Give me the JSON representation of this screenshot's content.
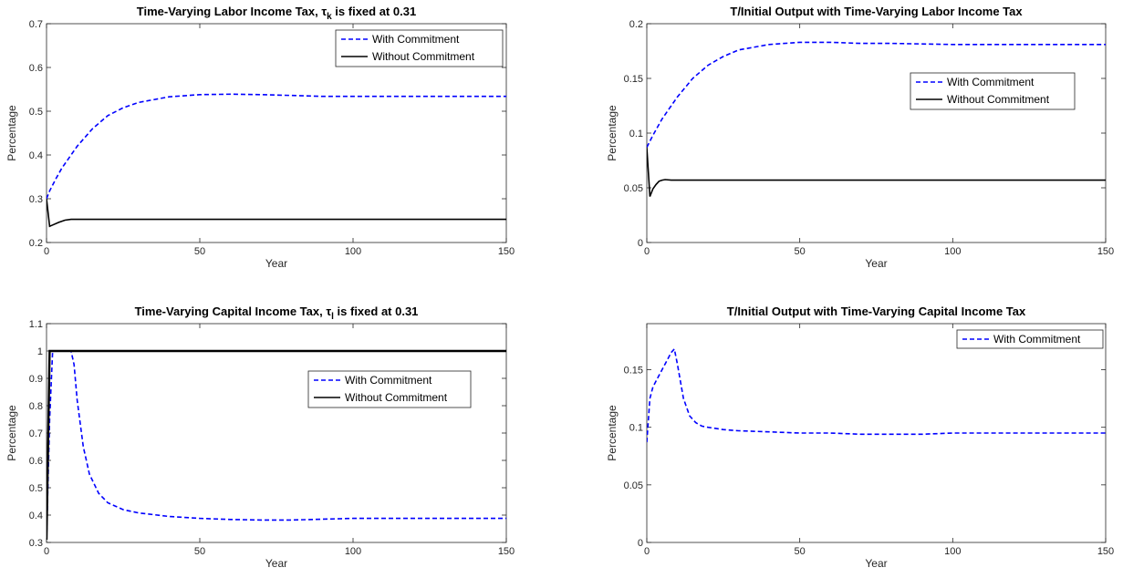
{
  "chart_data": [
    {
      "type": "line",
      "title": "Time-Varying Labor Income Tax, τ",
      "title_sub": "k",
      "title_suffix": " is fixed at 0.31",
      "xlabel": "Year",
      "ylabel": "Percentage",
      "xlim": [
        0,
        150
      ],
      "ylim": [
        0.2,
        0.7
      ],
      "xticks": [
        "0",
        "50",
        "100",
        "150"
      ],
      "yticks": [
        "0.2",
        "0.3",
        "0.4",
        "0.5",
        "0.6",
        "0.7"
      ],
      "legend_position": "top-right",
      "series": [
        {
          "name": "With Commitment",
          "color": "#0000ff",
          "style": "dashed",
          "x": [
            0,
            1,
            3,
            5,
            8,
            10,
            15,
            20,
            25,
            30,
            40,
            50,
            60,
            70,
            80,
            90,
            100,
            120,
            150
          ],
          "y": [
            0.3,
            0.318,
            0.345,
            0.37,
            0.4,
            0.42,
            0.46,
            0.49,
            0.508,
            0.52,
            0.533,
            0.538,
            0.539,
            0.538,
            0.536,
            0.534,
            0.534,
            0.534,
            0.534
          ]
        },
        {
          "name": "Without Commitment",
          "color": "#000000",
          "style": "solid",
          "x": [
            0,
            1,
            2,
            4,
            6,
            8,
            10,
            150
          ],
          "y": [
            0.3,
            0.237,
            0.24,
            0.246,
            0.251,
            0.253,
            0.253,
            0.253
          ]
        }
      ]
    },
    {
      "type": "line",
      "title": "T/Initial Output with Time-Varying Labor Income Tax",
      "xlabel": "Year",
      "ylabel": "Percentage",
      "xlim": [
        0,
        150
      ],
      "ylim": [
        0,
        0.2
      ],
      "xticks": [
        "0",
        "50",
        "100",
        "150"
      ],
      "yticks": [
        "0",
        "0.05",
        "0.1",
        "0.15",
        "0.2"
      ],
      "legend_position": "middle-right",
      "series": [
        {
          "name": "With Commitment",
          "color": "#0000ff",
          "style": "dashed",
          "x": [
            0,
            2,
            5,
            8,
            10,
            15,
            20,
            25,
            30,
            40,
            50,
            60,
            70,
            80,
            100,
            120,
            150
          ],
          "y": [
            0.087,
            0.098,
            0.113,
            0.125,
            0.133,
            0.15,
            0.162,
            0.17,
            0.176,
            0.181,
            0.183,
            0.183,
            0.182,
            0.182,
            0.181,
            0.181,
            0.181
          ]
        },
        {
          "name": "Without Commitment",
          "color": "#000000",
          "style": "solid",
          "x": [
            0,
            1,
            2,
            3,
            4,
            5,
            6,
            8,
            10,
            150
          ],
          "y": [
            0.087,
            0.042,
            0.049,
            0.053,
            0.056,
            0.057,
            0.0575,
            0.057,
            0.057,
            0.057
          ]
        }
      ]
    },
    {
      "type": "line",
      "title": "Time-Varying Capital Income Tax, τ",
      "title_sub": "l",
      "title_suffix": " is fixed at 0.31",
      "xlabel": "Year",
      "ylabel": "Percentage",
      "xlim": [
        0,
        150
      ],
      "ylim": [
        0.3,
        1.1
      ],
      "xticks": [
        "0",
        "50",
        "100",
        "150"
      ],
      "yticks": [
        "0.3",
        "0.4",
        "0.5",
        "0.6",
        "0.7",
        "0.8",
        "0.9",
        "1",
        "1.1"
      ],
      "legend_position": "middle-right",
      "series": [
        {
          "name": "With Commitment",
          "color": "#0000ff",
          "style": "dashed",
          "x": [
            0,
            1,
            2,
            6,
            8,
            9,
            10,
            12,
            14,
            17,
            20,
            25,
            30,
            40,
            50,
            60,
            70,
            80,
            90,
            100,
            120,
            150
          ],
          "y": [
            0.31,
            0.75,
            1.0,
            1.0,
            1.0,
            0.95,
            0.82,
            0.65,
            0.55,
            0.48,
            0.445,
            0.42,
            0.408,
            0.395,
            0.388,
            0.384,
            0.382,
            0.382,
            0.385,
            0.388,
            0.388,
            0.388
          ]
        },
        {
          "name": "Without Commitment",
          "color": "#000000",
          "style": "solid",
          "x": [
            0,
            1,
            150
          ],
          "y": [
            0.31,
            1.0,
            1.0
          ]
        }
      ]
    },
    {
      "type": "line",
      "title": "T/Initial Output with Time-Varying Capital Income Tax",
      "xlabel": "Year",
      "ylabel": "Percentage",
      "xlim": [
        0,
        150
      ],
      "ylim": [
        0,
        0.19
      ],
      "xticks": [
        "0",
        "50",
        "100",
        "150"
      ],
      "yticks": [
        "0",
        "0.05",
        "0.1",
        "0.15"
      ],
      "legend_position": "top-right",
      "series": [
        {
          "name": "With Commitment",
          "color": "#0000ff",
          "style": "dashed",
          "x": [
            0,
            1,
            2,
            4,
            6,
            8,
            9,
            10,
            12,
            14,
            16,
            18,
            20,
            25,
            30,
            40,
            50,
            60,
            70,
            80,
            90,
            100,
            120,
            150
          ],
          "y": [
            0.087,
            0.125,
            0.135,
            0.145,
            0.155,
            0.165,
            0.168,
            0.155,
            0.125,
            0.11,
            0.104,
            0.101,
            0.1,
            0.098,
            0.097,
            0.096,
            0.095,
            0.095,
            0.094,
            0.094,
            0.094,
            0.095,
            0.095,
            0.095
          ]
        }
      ]
    }
  ]
}
